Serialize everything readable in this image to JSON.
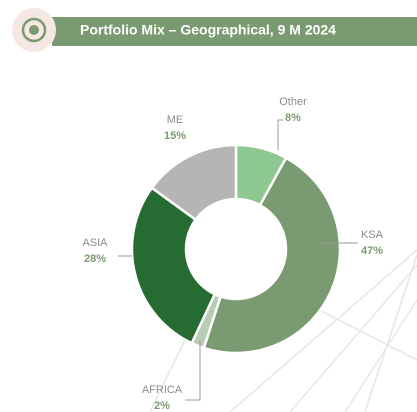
{
  "chart_data": {
    "type": "donut",
    "title": "Portfolio Mix – Geographical, 9 M 2024",
    "categories": [
      "Other",
      "KSA",
      "AFRICA",
      "ASIA",
      "ME"
    ],
    "values": [
      8,
      47,
      2,
      28,
      15
    ],
    "value_labels": [
      "8%",
      "47%",
      "2%",
      "28%",
      "15%"
    ],
    "colors": [
      "#8cc890",
      "#7a9a71",
      "#b9cdb5",
      "#266b32",
      "#b5b5b5"
    ]
  }
}
